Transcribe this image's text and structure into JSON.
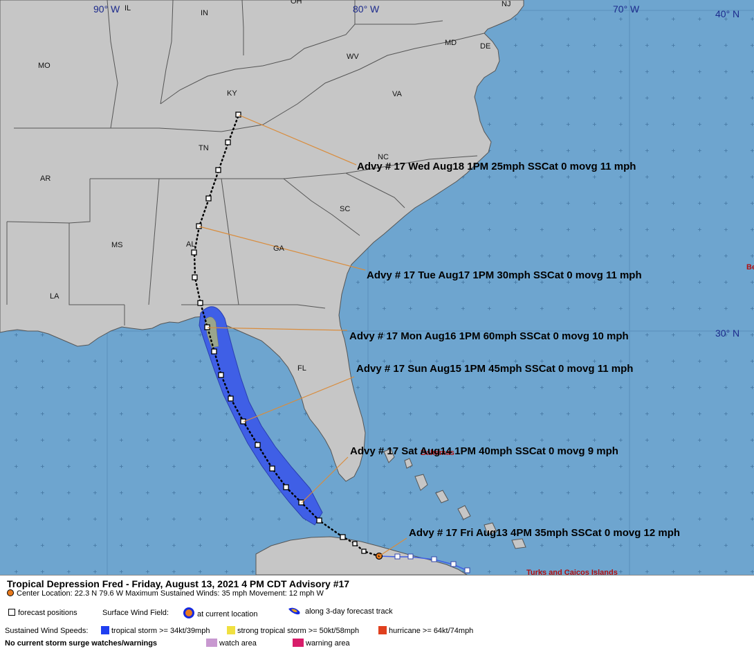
{
  "map": {
    "lon_labels": [
      "90° W",
      "80° W",
      "70° W"
    ],
    "lat_labels": [
      "40° N",
      "30° N"
    ],
    "state_labels": [
      "IL",
      "IN",
      "OH",
      "NJ",
      "MO",
      "KY",
      "WV",
      "MD",
      "DE",
      "VA",
      "TN",
      "NC",
      "AR",
      "SC",
      "MS",
      "AL",
      "GA",
      "LA",
      "FL"
    ],
    "place_labels": [
      "Bahamas",
      "Turks and Caicos Islands",
      "Be"
    ],
    "advisories": [
      {
        "label": "Advy # 17 Wed Aug18 1PM  25mph SSCat 0 movg 11 mph"
      },
      {
        "label": "Advy # 17 Tue Aug17 1PM  30mph SSCat 0 movg 11 mph"
      },
      {
        "label": "Advy # 17 Mon Aug16 1PM  60mph SSCat 0 movg 10 mph"
      },
      {
        "label": "Advy # 17 Sun Aug15 1PM  45mph SSCat 0 movg 11 mph"
      },
      {
        "label": "Advy # 17 Sat Aug14 1PM  40mph SSCat 0 movg 9 mph"
      },
      {
        "label": "Advy # 17 Fri Aug13 4PM  35mph SSCat 0 movg 12 mph"
      }
    ],
    "colors": {
      "ocean": "#6ea5cf",
      "land": "#c6c6c6",
      "border": "#555555",
      "wind_field": "#3f5fe6",
      "track": "#000000",
      "leader": "#d98c3c",
      "advisory_text": "#000000",
      "lat_lon_text": "#1c2a8c",
      "place_text": "#b01010"
    }
  },
  "legend": {
    "title": "Tropical Depression Fred  -  Friday, August 13, 2021  4 PM CDT   Advisory #17",
    "center_line": "Center Location: 22.3 N  79.6 W   Maximum Sustained Winds: 35 mph  Movement: 12 mph W",
    "forecast_positions": "forecast positions",
    "surface_wind_field": "Surface Wind Field:",
    "at_current_location": "at current location",
    "along_track": "along 3-day forecast track",
    "sustained_label": "Sustained Wind Speeds:",
    "tropical_storm": "tropical storm >= 34kt/39mph",
    "strong_tropical_storm": "strong tropical storm >= 50kt/58mph",
    "hurricane": "hurricane >= 64kt/74mph",
    "surge_note": "No current storm surge watches/warnings",
    "watch_area": "watch area",
    "warning_area": "warning area",
    "colors": {
      "ts": "#1f3ff0",
      "sts": "#f0e040",
      "hur": "#e0401e",
      "watch": "#c898d0",
      "warning": "#d81d6a"
    }
  }
}
